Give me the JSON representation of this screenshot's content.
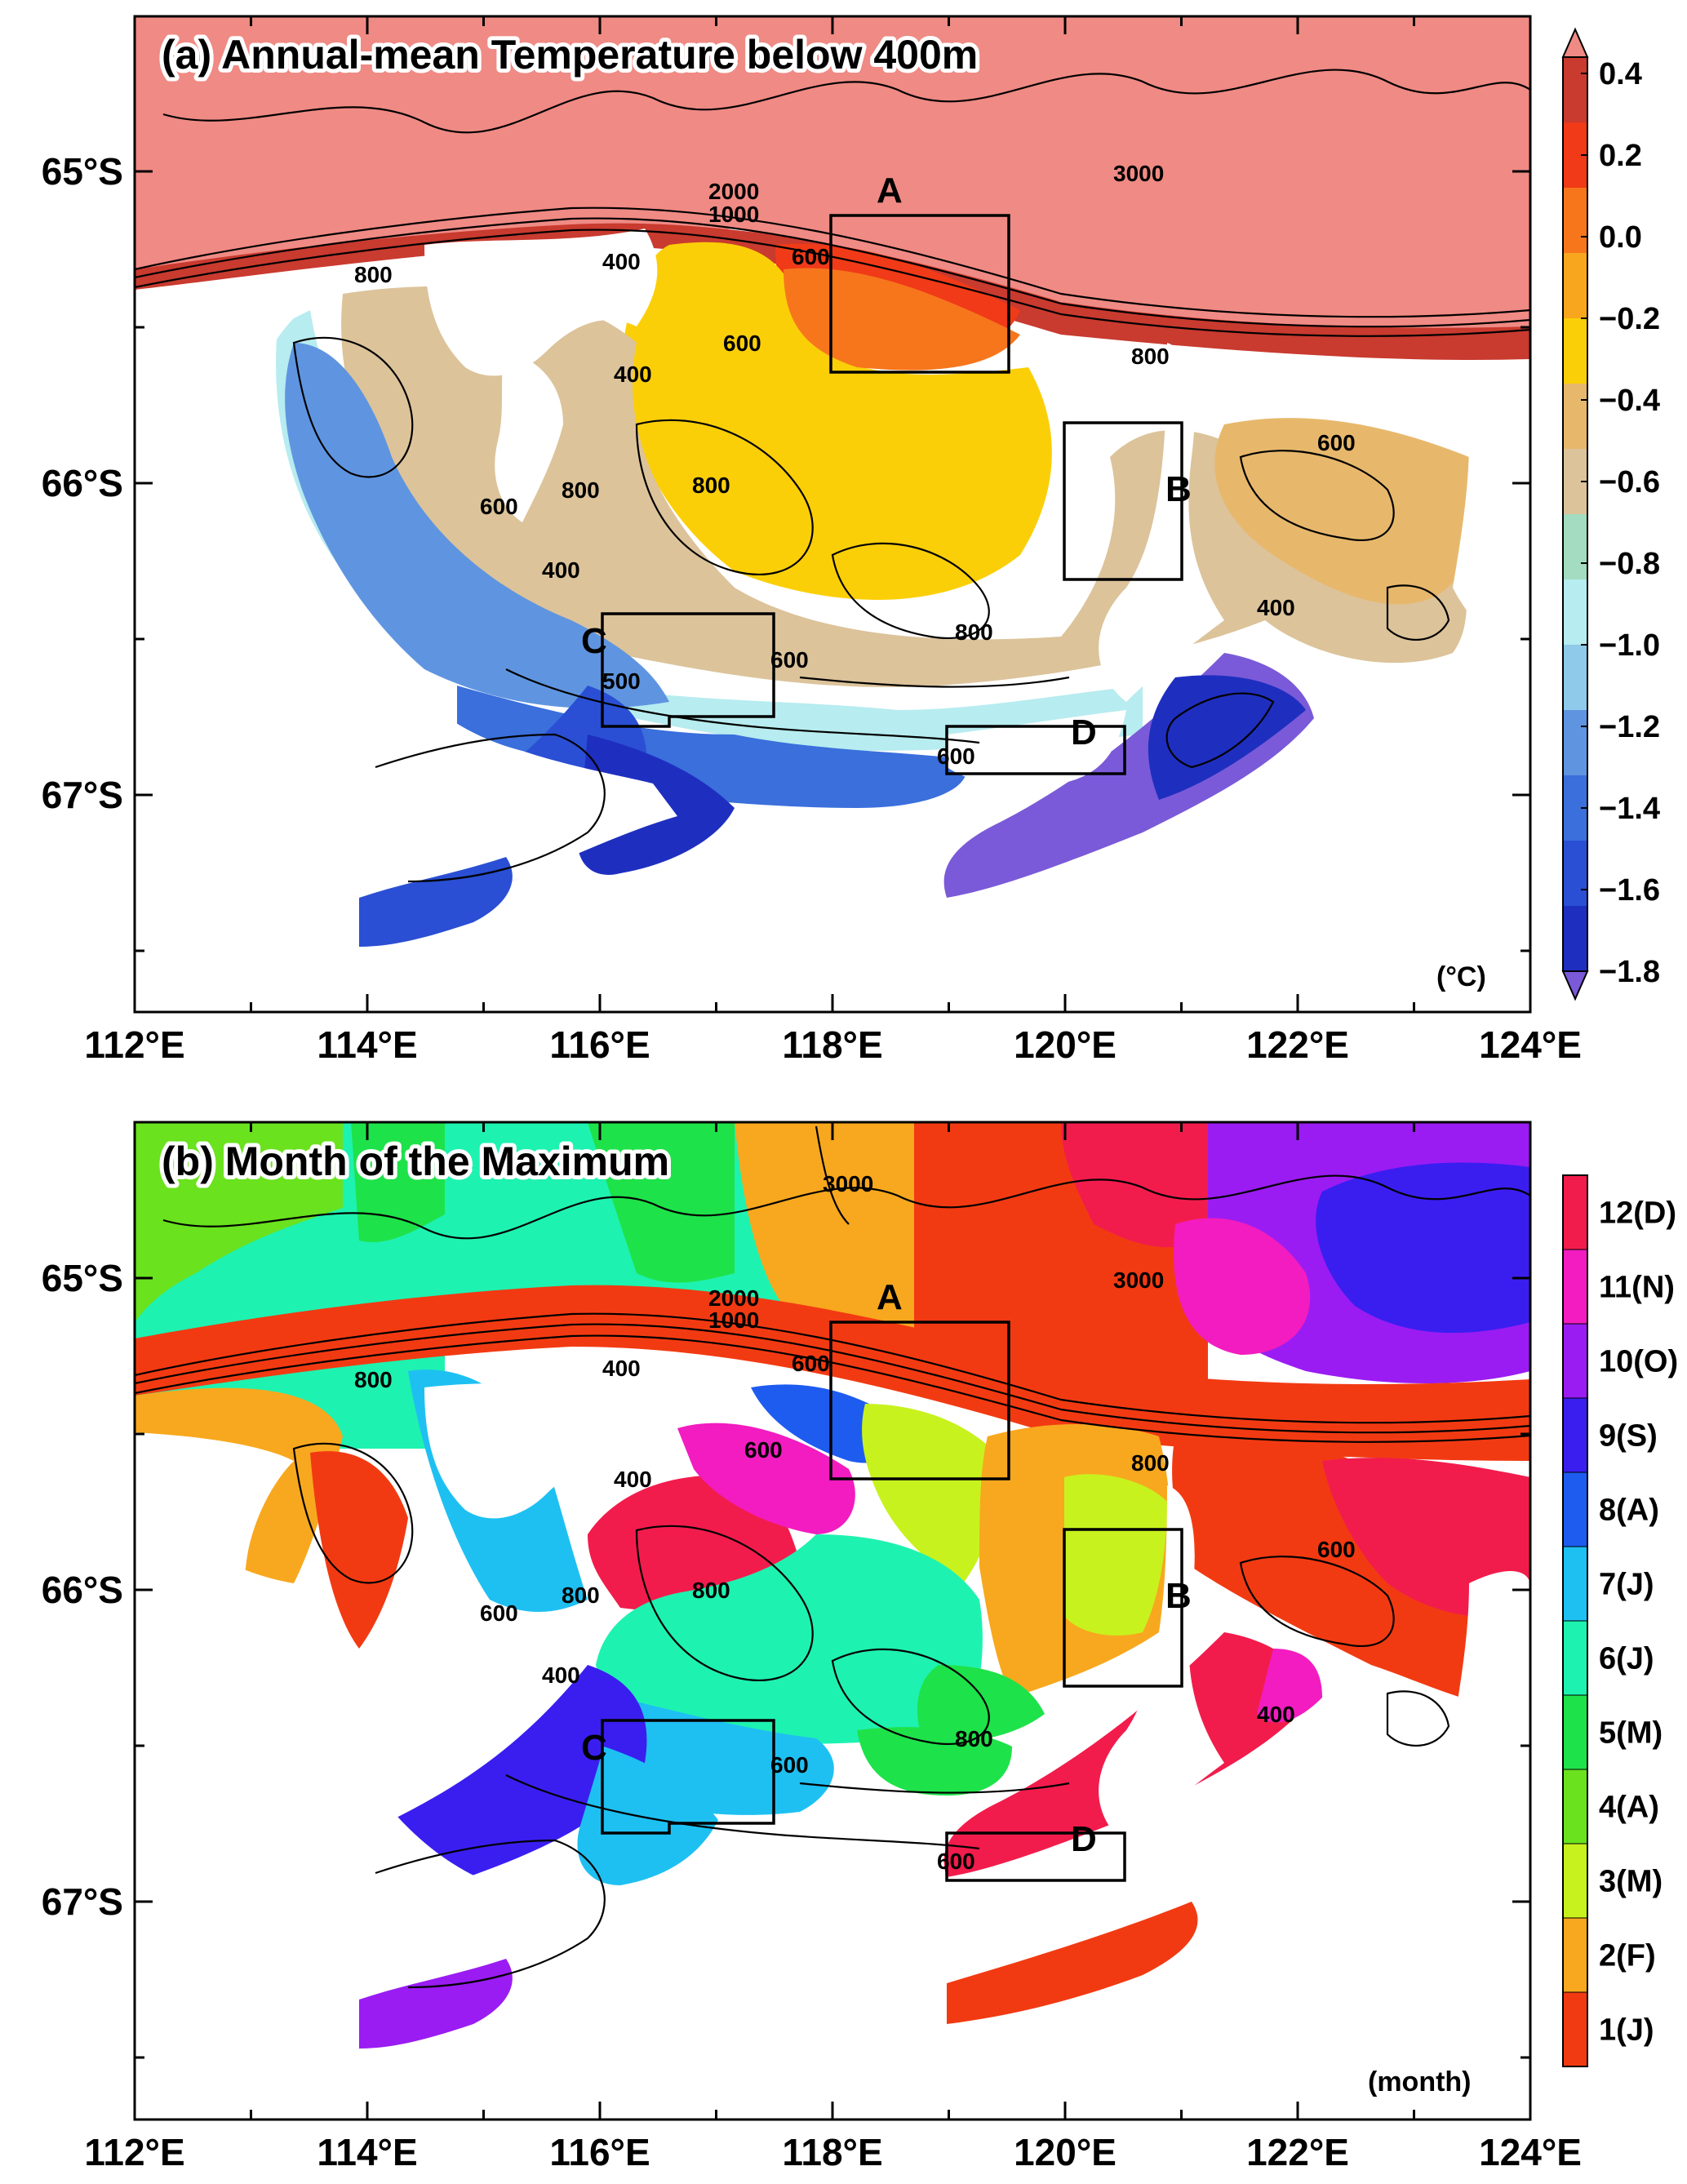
{
  "figure": {
    "panels": [
      {
        "id": "a",
        "title": "(a) Annual-mean Temperature below 400m",
        "unit": "(°C)",
        "colorbar": {
          "labels": [
            "0.4",
            "0.2",
            "0.0",
            "−0.2",
            "−0.4",
            "−0.6",
            "−0.8",
            "−1.0",
            "−1.2",
            "−1.4",
            "−1.6",
            "−1.8"
          ],
          "colors": [
            "#f08a84",
            "#c93a2f",
            "#f03a18",
            "#f7761c",
            "#f8a61e",
            "#fbcf08",
            "#e7b86c",
            "#dcc39a",
            "#a3dcc0",
            "#b7ecf0",
            "#8fcaeb",
            "#5f95e0",
            "#3a6fdc",
            "#2a4fd4",
            "#1e2fc0",
            "#7a5ad8"
          ]
        },
        "region_labels": [
          "A",
          "B",
          "C",
          "D"
        ],
        "contour_labels": [
          "2000",
          "1000",
          "3000",
          "800",
          "400",
          "600",
          "400",
          "600",
          "800",
          "800",
          "600",
          "400",
          "600",
          "800",
          "600",
          "400",
          "600",
          "500",
          "800"
        ]
      },
      {
        "id": "b",
        "title": "(b) Month of the Maximum",
        "unit": "(month)",
        "colorbar": {
          "labels": [
            "12(D)",
            "11(N)",
            "10(O)",
            "9(S)",
            "8(A)",
            "7(J)",
            "6(J)",
            "5(M)",
            "4(A)",
            "3(M)",
            "2(F)",
            "1(J)"
          ],
          "colors": [
            "#f21c4c",
            "#f21cc0",
            "#9a1cf2",
            "#3a1ef0",
            "#1e5cf0",
            "#1ec0f2",
            "#1ef2b0",
            "#1ee24a",
            "#6ae21e",
            "#c8f21e",
            "#f8a81e",
            "#f23a12"
          ]
        },
        "region_labels": [
          "A",
          "B",
          "C",
          "D"
        ],
        "contour_labels": [
          "2000",
          "1000",
          "3000",
          "3000",
          "800",
          "400",
          "600",
          "400",
          "600",
          "800",
          "800",
          "600",
          "400",
          "600",
          "800",
          "600",
          "400",
          "600",
          "800"
        ]
      }
    ],
    "x_ticks": [
      "112°E",
      "114°E",
      "116°E",
      "118°E",
      "120°E",
      "122°E",
      "124°E"
    ],
    "y_ticks": [
      "65°S",
      "66°S",
      "67°S"
    ]
  }
}
